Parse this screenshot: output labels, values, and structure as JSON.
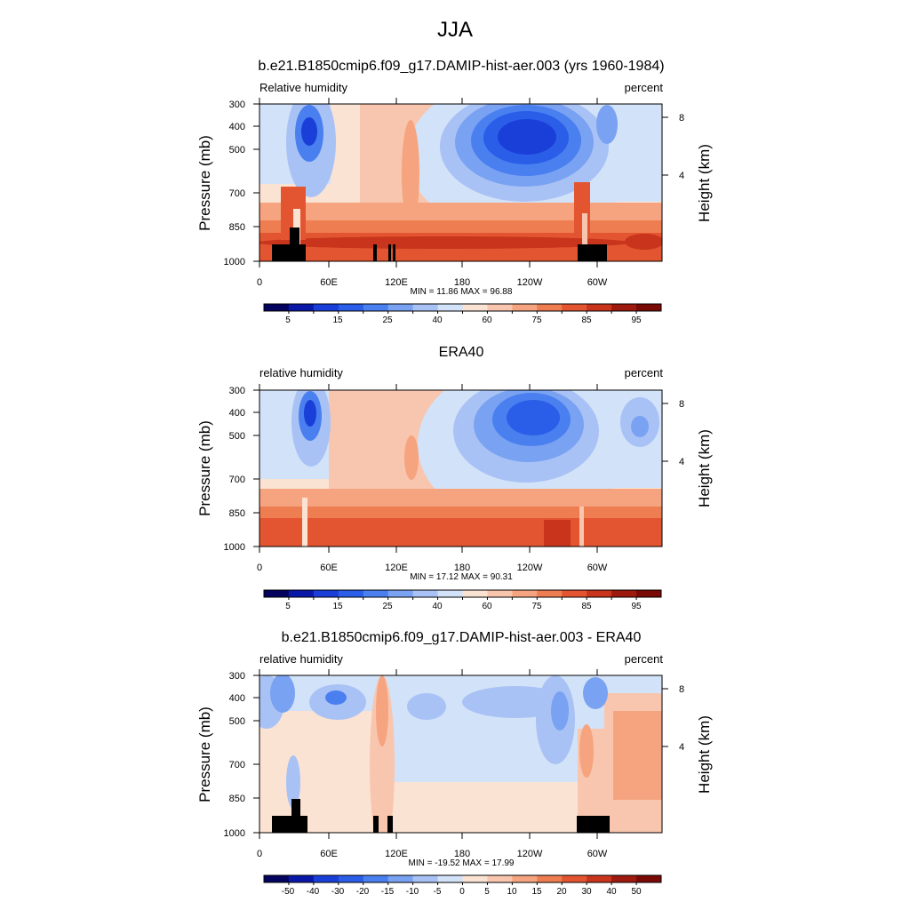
{
  "figure_title": "JJA",
  "chart_data": [
    {
      "type": "heatmap",
      "title": "b.e21.B1850cmip6.f09_g17.DAMIP-hist-aer.003 (yrs 1960-1984)",
      "variable_label": "Relative humidity",
      "units_label": "percent",
      "ylabel": "Pressure (mb)",
      "ylabel_right": "Height (km)",
      "x_ticks": [
        "0",
        "60E",
        "120E",
        "180",
        "120W",
        "60W"
      ],
      "y_ticks": [
        "300",
        "400",
        "500",
        "700",
        "850",
        "1000"
      ],
      "y_right_ticks": [
        "8",
        "4"
      ],
      "ylim": [
        1000,
        300
      ],
      "stats": "MIN =  11.86  MAX =  96.88",
      "min": 11.86,
      "max": 96.88,
      "colorbar_labels": [
        "5",
        "15",
        "25",
        "40",
        "60",
        "75",
        "85",
        "95"
      ],
      "colorbar_colors": [
        "#04045f",
        "#0a18a8",
        "#1a3fd8",
        "#2a5de8",
        "#4a7ff0",
        "#7aa2f2",
        "#a9c2f5",
        "#d2e2f8",
        "#fbe3d4",
        "#f8c6ae",
        "#f5a47f",
        "#ef7d52",
        "#e35530",
        "#c8351c",
        "#9e1a0e",
        "#7a0a06"
      ]
    },
    {
      "type": "heatmap",
      "title": "ERA40",
      "variable_label": "relative humidity",
      "units_label": "percent",
      "ylabel": "Pressure (mb)",
      "ylabel_right": "Height (km)",
      "x_ticks": [
        "0",
        "60E",
        "120E",
        "180",
        "120W",
        "60W"
      ],
      "y_ticks": [
        "300",
        "400",
        "500",
        "700",
        "850",
        "1000"
      ],
      "y_right_ticks": [
        "8",
        "4"
      ],
      "ylim": [
        1000,
        300
      ],
      "stats": "MIN =  17.12  MAX =  90.31",
      "min": 17.12,
      "max": 90.31,
      "colorbar_labels": [
        "5",
        "15",
        "25",
        "40",
        "60",
        "75",
        "85",
        "95"
      ],
      "colorbar_colors": [
        "#04045f",
        "#0a18a8",
        "#1a3fd8",
        "#2a5de8",
        "#4a7ff0",
        "#7aa2f2",
        "#a9c2f5",
        "#d2e2f8",
        "#fbe3d4",
        "#f8c6ae",
        "#f5a47f",
        "#ef7d52",
        "#e35530",
        "#c8351c",
        "#9e1a0e",
        "#7a0a06"
      ]
    },
    {
      "type": "heatmap",
      "title": "b.e21.B1850cmip6.f09_g17.DAMIP-hist-aer.003 - ERA40",
      "variable_label": "relative humidity",
      "units_label": "percent",
      "ylabel": "Pressure (mb)",
      "ylabel_right": "Height (km)",
      "x_ticks": [
        "0",
        "60E",
        "120E",
        "180",
        "120W",
        "60W"
      ],
      "y_ticks": [
        "300",
        "400",
        "500",
        "700",
        "850",
        "1000"
      ],
      "y_right_ticks": [
        "8",
        "4"
      ],
      "ylim": [
        1000,
        300
      ],
      "stats": "MIN = -19.52  MAX =  17.99",
      "min": -19.52,
      "max": 17.99,
      "colorbar_labels": [
        "-50",
        "-40",
        "-30",
        "-20",
        "-15",
        "-10",
        "-5",
        "0",
        "5",
        "10",
        "15",
        "20",
        "30",
        "40",
        "50"
      ],
      "colorbar_colors": [
        "#04045f",
        "#0a18a8",
        "#1a3fd8",
        "#2a5de8",
        "#4a7ff0",
        "#7aa2f2",
        "#a9c2f5",
        "#d2e2f8",
        "#fbe3d4",
        "#f8c6ae",
        "#f5a47f",
        "#ef7d52",
        "#e35530",
        "#c8351c",
        "#9e1a0e",
        "#7a0a06"
      ]
    }
  ]
}
